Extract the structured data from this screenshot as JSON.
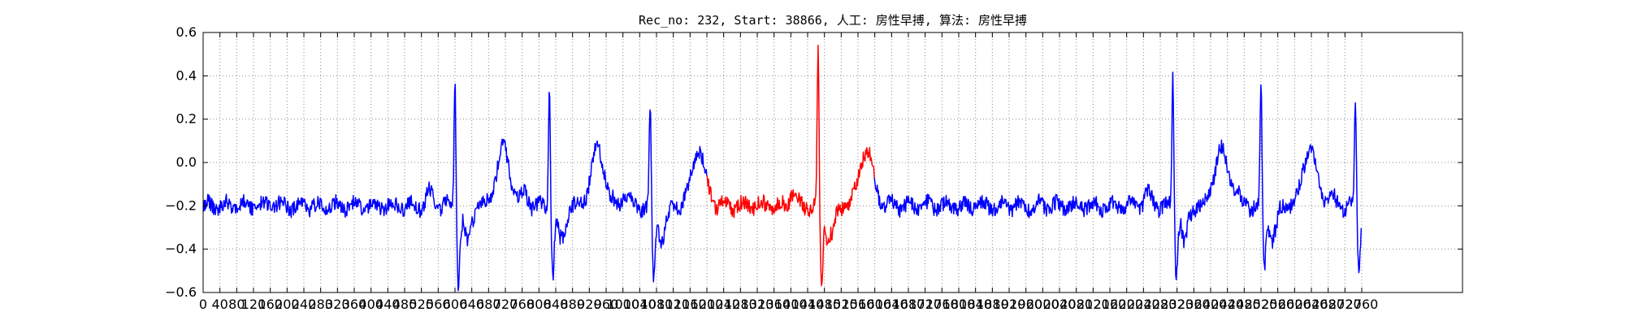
{
  "chart_data": {
    "type": "line",
    "title": "Rec_no: 232, Start: 38866, 人工: 房性早搏, 算法: 房性早搏",
    "xlabel": "",
    "ylabel": "",
    "xlim": [
      0,
      3000
    ],
    "ylim": [
      -0.6,
      0.6
    ],
    "x_ticks_major_step": 40,
    "y_ticks": [
      -0.6,
      -0.4,
      -0.2,
      0.0,
      0.2,
      0.4,
      0.6
    ],
    "grid": true,
    "legend": "none",
    "colors": {
      "normal": "#0000ff",
      "highlight": "#ff0000",
      "grid": "#888888"
    },
    "highlight_range": [
      1200,
      1600
    ],
    "sample_count": 2000,
    "series": [
      {
        "baseline": -0.2,
        "beats": [
          {
            "x": 600,
            "peak": 0.41,
            "trough": -0.56
          },
          {
            "x": 825,
            "peak": 0.35,
            "trough": -0.49
          },
          {
            "x": 1065,
            "peak": 0.28,
            "trough": -0.51
          },
          {
            "x": 1465,
            "peak": 0.52,
            "trough": -0.54
          },
          {
            "x": 2310,
            "peak": 0.42,
            "trough": -0.5
          },
          {
            "x": 2520,
            "peak": 0.37,
            "trough": -0.46
          },
          {
            "x": 2745,
            "peak": 0.28,
            "trough": -0.46
          }
        ]
      }
    ]
  }
}
